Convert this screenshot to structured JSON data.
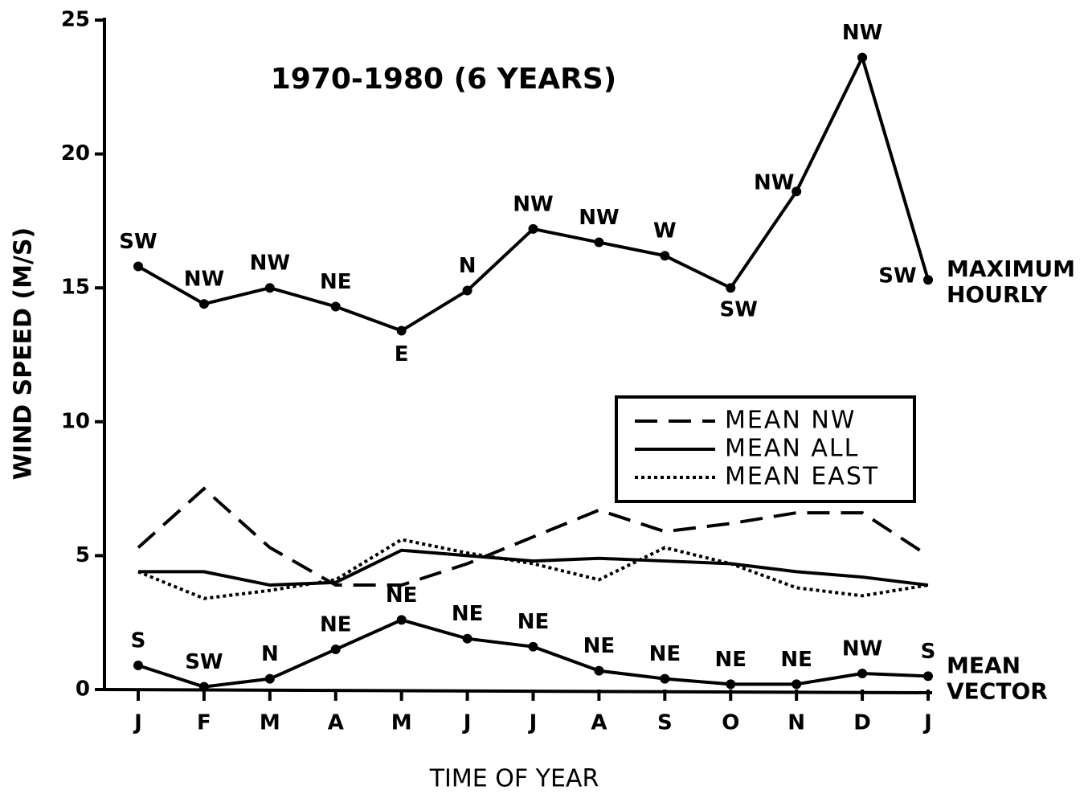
{
  "chart_data": {
    "type": "line",
    "title": "1970-1980 (6 YEARS)",
    "x_label": "TIME OF YEAR",
    "y_label": "WIND SPEED (M/S)",
    "categories": [
      "J",
      "F",
      "M",
      "A",
      "M",
      "J",
      "J",
      "A",
      "S",
      "O",
      "N",
      "D",
      "J"
    ],
    "ylim": [
      0,
      25
    ],
    "yticks": [
      0,
      5,
      10,
      15,
      20,
      25
    ],
    "legend": "right",
    "series": [
      {
        "name": "MAXIMUM HOURLY",
        "color": "#000000",
        "style": "solid",
        "markers": true,
        "in_legend": false,
        "values": [
          15.8,
          14.4,
          15.0,
          14.3,
          13.4,
          14.9,
          17.2,
          16.7,
          16.2,
          15.0,
          18.6,
          23.6,
          15.3
        ],
        "point_labels": [
          "SW",
          "NW",
          "NW",
          "NE",
          "E",
          "N",
          "NW",
          "NW",
          "W",
          "SW",
          "NW",
          "NW",
          "SW"
        ]
      },
      {
        "name": "MEAN VECTOR",
        "color": "#000000",
        "style": "solid",
        "markers": true,
        "in_legend": false,
        "values": [
          0.9,
          0.1,
          0.4,
          1.5,
          2.6,
          1.9,
          1.6,
          0.7,
          0.4,
          0.2,
          0.2,
          0.6,
          0.5
        ],
        "point_labels": [
          "S",
          "SW",
          "N",
          "NE",
          "NE",
          "NE",
          "NE",
          "NE",
          "NE",
          "NE",
          "NE",
          "NW",
          "S"
        ]
      },
      {
        "name": "MEAN NW",
        "color": "#000000",
        "style": "dashed",
        "markers": false,
        "in_legend": true,
        "values": [
          5.3,
          7.5,
          5.3,
          3.9,
          3.9,
          4.7,
          5.7,
          6.7,
          5.9,
          6.2,
          6.6,
          6.6,
          5.0
        ]
      },
      {
        "name": "MEAN ALL",
        "color": "#000000",
        "style": "solid",
        "markers": false,
        "in_legend": true,
        "values": [
          4.4,
          4.4,
          3.9,
          4.0,
          5.2,
          5.0,
          4.8,
          4.9,
          4.8,
          4.7,
          4.4,
          4.2,
          3.9
        ]
      },
      {
        "name": "MEAN EAST",
        "color": "#000000",
        "style": "dotted",
        "markers": false,
        "in_legend": true,
        "values": [
          4.4,
          3.4,
          3.7,
          4.1,
          5.6,
          5.1,
          4.7,
          4.1,
          5.3,
          4.7,
          3.8,
          3.5,
          3.9
        ]
      }
    ]
  }
}
